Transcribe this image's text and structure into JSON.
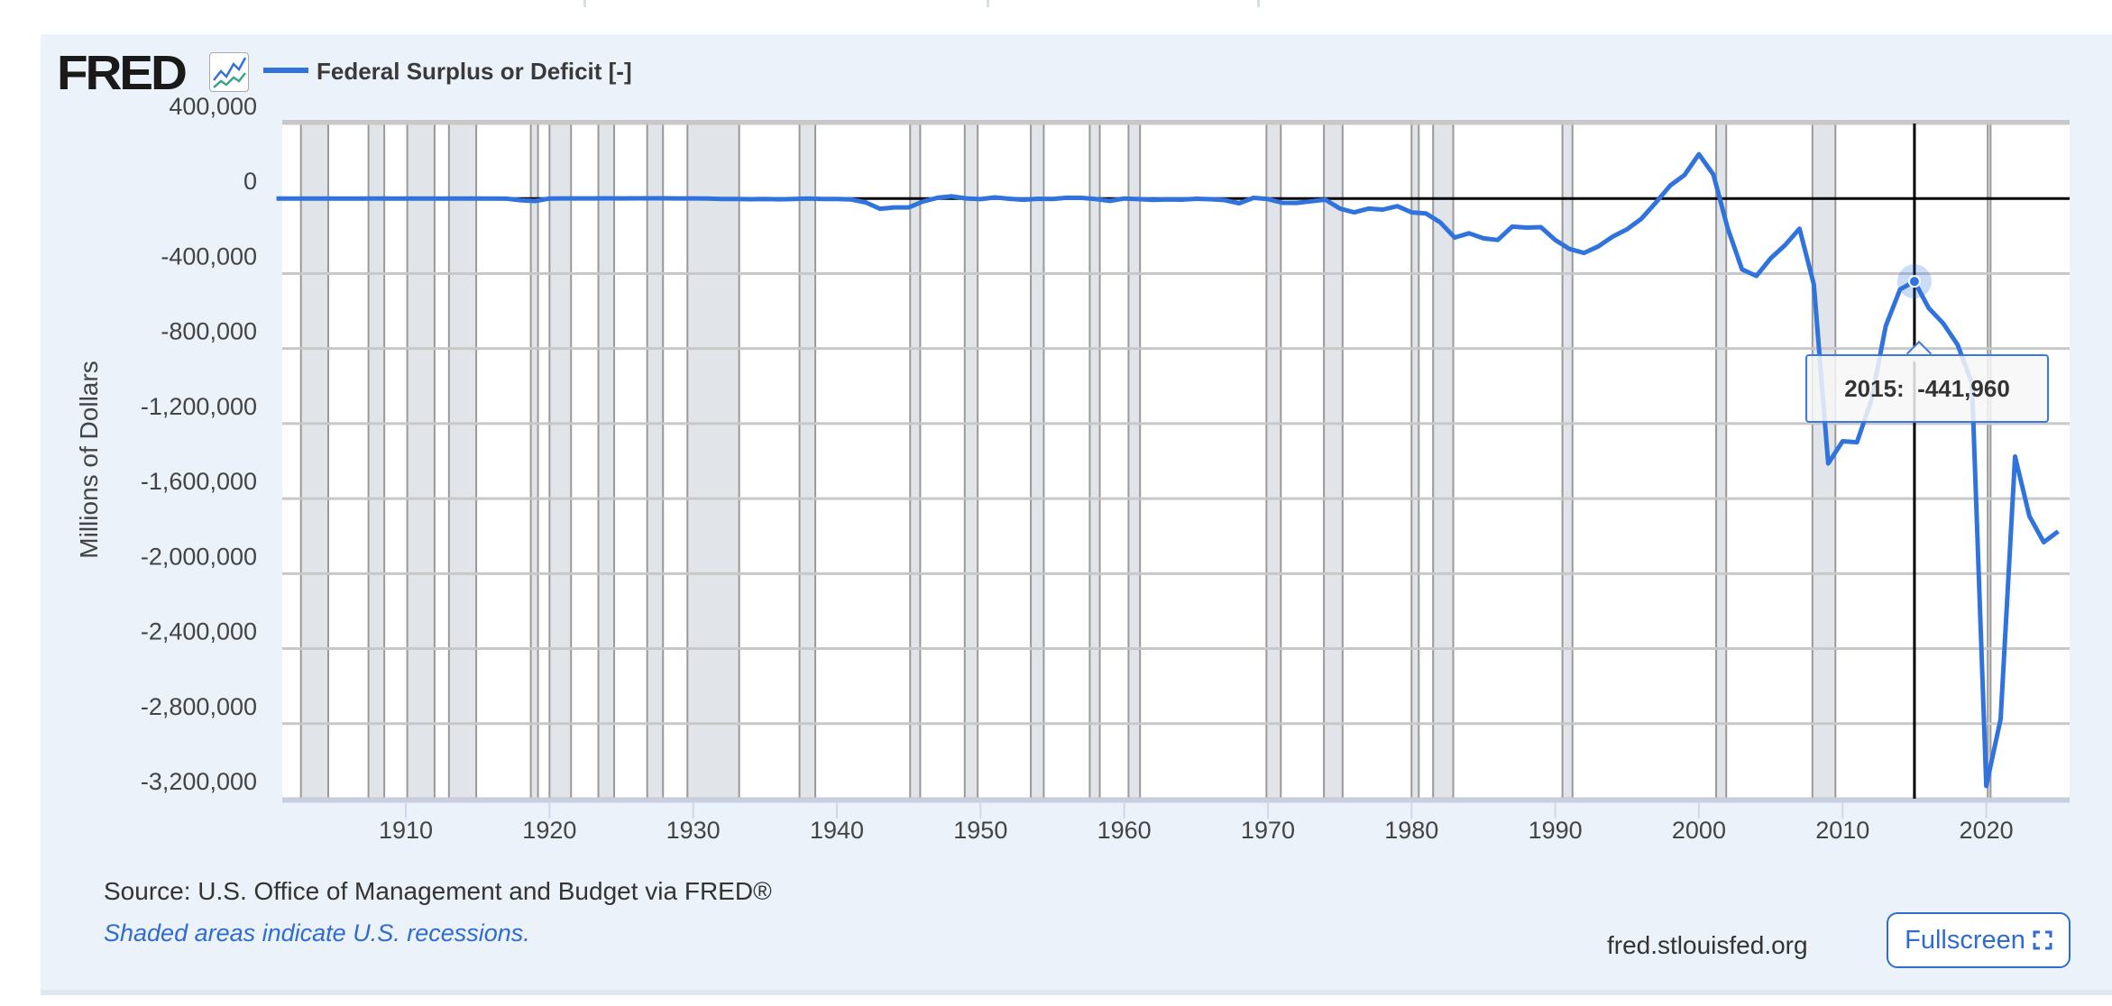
{
  "legend": {
    "logo": "FRED",
    "logo_icon": "chart-line-icon",
    "series_label": "Federal Surplus or Deficit [-]",
    "series_color": "#3173dd"
  },
  "footer": {
    "source": "Source: U.S. Office of Management and Budget via FRED®",
    "recession_note": "Shaded areas indicate U.S. recessions.",
    "site": "fred.stlouisfed.org",
    "fullscreen_label": "Fullscreen",
    "fullscreen_icon": "expand-icon"
  },
  "tooltip": {
    "text": "2015:  -441,960"
  },
  "chart_data": {
    "type": "line",
    "title": "Federal Surplus or Deficit [-]",
    "xlabel": "",
    "ylabel": "Millions of Dollars",
    "xlim": [
      1901.4,
      2025.8
    ],
    "ylim": [
      -3200000,
      400000
    ],
    "x_ticks": [
      1910,
      1920,
      1930,
      1940,
      1950,
      1960,
      1970,
      1980,
      1990,
      2000,
      2010,
      2020
    ],
    "y_ticks": [
      400000,
      0,
      -400000,
      -800000,
      -1200000,
      -1600000,
      -2000000,
      -2400000,
      -2800000,
      -3200000
    ],
    "y_tick_labels": [
      "400,000",
      "0",
      "-400,000",
      "-800,000",
      "-1,200,000",
      "-1,600,000",
      "-2,000,000",
      "-2,400,000",
      "-2,800,000",
      "-3,200,000"
    ],
    "grid": true,
    "highlight": {
      "x": 2015,
      "y": -441960
    },
    "recessions": [
      [
        1902.7,
        1904.6
      ],
      [
        1907.4,
        1908.5
      ],
      [
        1910.1,
        1912.0
      ],
      [
        1913.0,
        1914.9
      ],
      [
        1918.7,
        1919.2
      ],
      [
        1920.0,
        1921.5
      ],
      [
        1923.4,
        1924.5
      ],
      [
        1926.8,
        1927.9
      ],
      [
        1929.6,
        1933.2
      ],
      [
        1937.4,
        1938.5
      ],
      [
        1945.1,
        1945.8
      ],
      [
        1948.9,
        1949.8
      ],
      [
        1953.5,
        1954.4
      ],
      [
        1957.6,
        1958.3
      ],
      [
        1960.3,
        1961.1
      ],
      [
        1969.9,
        1970.9
      ],
      [
        1973.9,
        1975.2
      ],
      [
        1980.0,
        1980.5
      ],
      [
        1981.5,
        1982.9
      ],
      [
        1990.5,
        1991.2
      ],
      [
        2001.2,
        2001.9
      ],
      [
        2007.9,
        2009.5
      ],
      [
        2020.1,
        2020.3
      ]
    ],
    "series": [
      {
        "name": "Federal Surplus or Deficit [-]",
        "x": [
          1901,
          1902,
          1903,
          1904,
          1905,
          1906,
          1907,
          1908,
          1909,
          1910,
          1911,
          1912,
          1913,
          1914,
          1915,
          1916,
          1917,
          1918,
          1919,
          1920,
          1921,
          1922,
          1923,
          1924,
          1925,
          1926,
          1927,
          1928,
          1929,
          1930,
          1931,
          1932,
          1933,
          1934,
          1935,
          1936,
          1937,
          1938,
          1939,
          1940,
          1941,
          1942,
          1943,
          1944,
          1945,
          1946,
          1947,
          1948,
          1949,
          1950,
          1951,
          1952,
          1953,
          1954,
          1955,
          1956,
          1957,
          1958,
          1959,
          1960,
          1961,
          1962,
          1963,
          1964,
          1965,
          1966,
          1967,
          1968,
          1969,
          1970,
          1971,
          1972,
          1973,
          1974,
          1975,
          1976,
          1977,
          1978,
          1979,
          1980,
          1981,
          1982,
          1983,
          1984,
          1985,
          1986,
          1987,
          1988,
          1989,
          1990,
          1991,
          1992,
          1993,
          1994,
          1995,
          1996,
          1997,
          1998,
          1999,
          2000,
          2001,
          2002,
          2003,
          2004,
          2005,
          2006,
          2007,
          2008,
          2009,
          2010,
          2011,
          2012,
          2013,
          2014,
          2015,
          2016,
          2017,
          2018,
          2019,
          2020,
          2021,
          2022,
          2023,
          2024,
          2025
        ],
        "values": [
          63,
          77,
          45,
          -43,
          -23,
          25,
          87,
          -57,
          -89,
          -18,
          11,
          3,
          0,
          -1,
          -63,
          48,
          -853,
          -9032,
          -13363,
          291,
          509,
          736,
          713,
          963,
          717,
          865,
          1155,
          939,
          734,
          738,
          -462,
          -2735,
          -2602,
          -3586,
          -2803,
          -4304,
          -2193,
          -89,
          -2846,
          -2920,
          -4941,
          -20503,
          -54554,
          -47557,
          -47553,
          -15936,
          4018,
          11796,
          580,
          -3119,
          6102,
          -1519,
          -6493,
          -1154,
          -2993,
          3947,
          3412,
          -2769,
          -12849,
          301,
          -3335,
          -7146,
          -4756,
          -5915,
          -1411,
          -3698,
          -8643,
          -25161,
          3242,
          -2842,
          -23033,
          -23373,
          -14908,
          -6135,
          -53242,
          -73732,
          -53659,
          -59185,
          -40726,
          -73830,
          -78968,
          -127977,
          -207802,
          -185367,
          -212308,
          -221227,
          -149730,
          -155178,
          -152639,
          -221036,
          -269238,
          -290321,
          -255051,
          -203186,
          -163952,
          -107431,
          -21884,
          69270,
          125610,
          236241,
          128236,
          -157758,
          -377585,
          -412727,
          -318346,
          -248181,
          -160701,
          -458553,
          -1412688,
          -1294373,
          -1299599,
          -1076573,
          -679775,
          -484600,
          -441960,
          -584651,
          -665446,
          -779137,
          -983588,
          -3132460,
          -2775306,
          -1375905,
          -1693722,
          -1832813,
          -1775000
        ]
      }
    ]
  }
}
